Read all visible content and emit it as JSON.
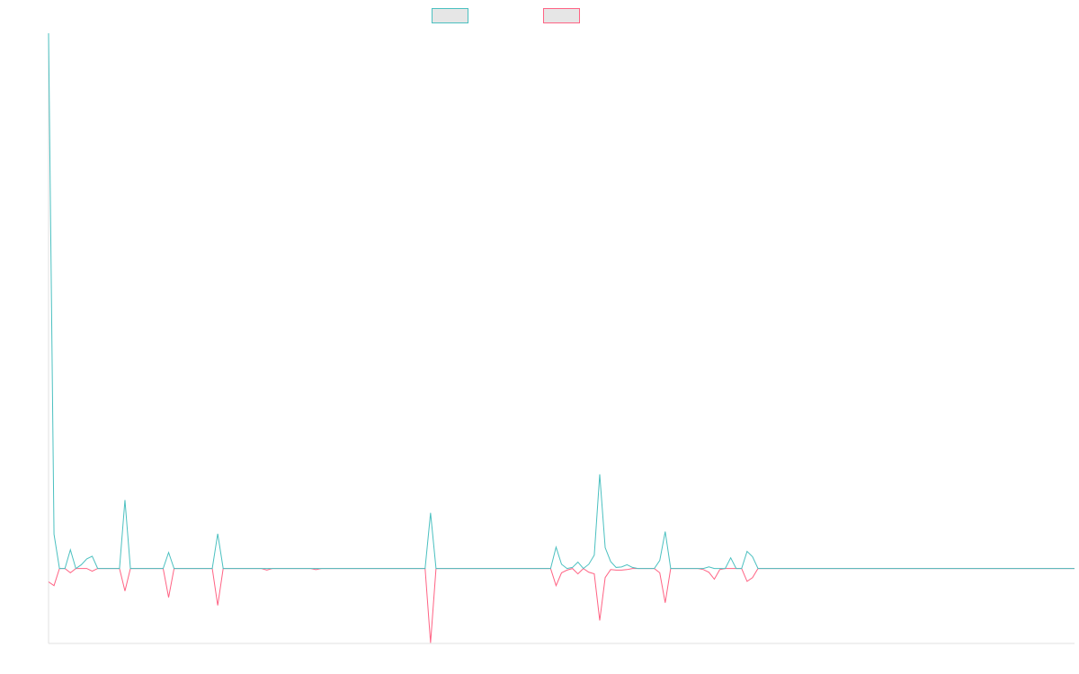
{
  "chart_data": {
    "type": "line",
    "categories": [
      null,
      null,
      null,
      null,
      null,
      null,
      null,
      null,
      null,
      null,
      null,
      null,
      null,
      null,
      null,
      null,
      null,
      null,
      null,
      null,
      null,
      null,
      null,
      null,
      null,
      null,
      null,
      null,
      null,
      null,
      null,
      null,
      null,
      null,
      null,
      null,
      null,
      null,
      null,
      null,
      null,
      null,
      null,
      null,
      null,
      null,
      null,
      null,
      null,
      null,
      null,
      null,
      null,
      null,
      null,
      null,
      null,
      null,
      null,
      null,
      null,
      null,
      null,
      null,
      null,
      null,
      null,
      null,
      null,
      null,
      null,
      null,
      null,
      null,
      null,
      null,
      null,
      null,
      null,
      null,
      null,
      null,
      null,
      null,
      null,
      null,
      null,
      null,
      null,
      null,
      null,
      null,
      null,
      null,
      null,
      null,
      null,
      null,
      null,
      null,
      null,
      null,
      null,
      null,
      null,
      null,
      null,
      null,
      null,
      null,
      null,
      null,
      null,
      null,
      null,
      null,
      null,
      null,
      null,
      null,
      null,
      null,
      null,
      null,
      null,
      null,
      null,
      null,
      null,
      null,
      null,
      null,
      null,
      null,
      null,
      null,
      null,
      null,
      null,
      null,
      null,
      null,
      null,
      null,
      null,
      null,
      null,
      null,
      null,
      null,
      null,
      null,
      null,
      null,
      null,
      null,
      null,
      null,
      null,
      null,
      null,
      null,
      null,
      null,
      null,
      null,
      null,
      null,
      null,
      null,
      null,
      null,
      null,
      null,
      null,
      null,
      null,
      null,
      null,
      null,
      null,
      null,
      null,
      null,
      null,
      null,
      null,
      null,
      null
    ],
    "series": [
      {
        "color": "#4bc0c0",
        "values": [
          100,
          6.4,
          0,
          0,
          3.5,
          0,
          0.7,
          1.8,
          2.3,
          0,
          0,
          0,
          0,
          0,
          12.8,
          0,
          0,
          0,
          0,
          0,
          0,
          0,
          3,
          0,
          0,
          0,
          0,
          0,
          0,
          0,
          0,
          6.5,
          0,
          0,
          0,
          0,
          0,
          0,
          0,
          0,
          0,
          0,
          0,
          0,
          0,
          0,
          0,
          0,
          0,
          0,
          0,
          0,
          0,
          0,
          0,
          0,
          0,
          0,
          0,
          0,
          0,
          0,
          0,
          0,
          0,
          0,
          0,
          0,
          0,
          0,
          10.4,
          0,
          0,
          0,
          0,
          0,
          0,
          0,
          0,
          0,
          0,
          0,
          0,
          0,
          0,
          0,
          0,
          0,
          0,
          0,
          0,
          0,
          0,
          4,
          0.8,
          0,
          0.2,
          1.2,
          0,
          0.8,
          2.5,
          17.6,
          3.9,
          1.3,
          0.2,
          0.3,
          0.7,
          0.2,
          0,
          0,
          0,
          0,
          1.5,
          6.9,
          0,
          0,
          0,
          0,
          0,
          0,
          0,
          0.3,
          0,
          0,
          0,
          2,
          0,
          0,
          3.2,
          2.2,
          0,
          0,
          0,
          0,
          0,
          0,
          0,
          0,
          0,
          0,
          0,
          0,
          0,
          0,
          0,
          0,
          0,
          0,
          0,
          0,
          0,
          0,
          0,
          0,
          0,
          0,
          0,
          0,
          0,
          0,
          0,
          0,
          0,
          0,
          0,
          0,
          0,
          0,
          0,
          0,
          0,
          0,
          0,
          0,
          0,
          0,
          0,
          0,
          0,
          0,
          0,
          0,
          0,
          0,
          0,
          0,
          0,
          0,
          0
        ]
      },
      {
        "color": "#ff6384",
        "values": [
          -2.5,
          -3.2,
          0,
          0,
          -0.8,
          0,
          0,
          0,
          -0.5,
          0,
          0,
          0,
          0,
          0,
          -4.2,
          0,
          0,
          0,
          0,
          0,
          0,
          0,
          -5.4,
          0,
          0,
          0,
          0,
          0,
          0,
          0,
          0,
          -6.9,
          0,
          0,
          0,
          0,
          0,
          0,
          0,
          0,
          -0.3,
          0,
          0,
          0,
          0,
          0,
          0,
          0,
          0,
          -0.2,
          0,
          0,
          0,
          0,
          0,
          0,
          0,
          0,
          0,
          0,
          0,
          0,
          0,
          0,
          0,
          0,
          0,
          0,
          0,
          0,
          -13.9,
          0,
          0,
          0,
          0,
          0,
          0,
          0,
          0,
          0,
          0,
          0,
          0,
          0,
          0,
          0,
          0,
          0,
          0,
          0,
          0,
          0,
          0,
          -3.2,
          -0.8,
          -0.3,
          0,
          -1,
          0,
          -0.7,
          -1,
          -9.7,
          -1.7,
          -0.2,
          -0.3,
          -0.3,
          -0.2,
          0,
          0,
          0,
          0,
          0,
          -0.8,
          -6.4,
          0,
          0,
          0,
          0,
          0,
          0,
          -0.2,
          -0.7,
          -2,
          -0.2,
          0,
          0,
          0,
          0,
          -2.4,
          -1.7,
          0,
          0,
          0,
          0,
          0,
          0,
          0,
          0,
          0,
          0,
          0,
          0,
          0,
          0,
          0,
          0,
          0,
          0,
          0,
          0,
          0,
          0,
          0,
          0,
          0,
          0,
          0,
          0,
          0,
          0,
          0,
          0,
          0,
          0,
          0,
          0,
          0,
          0,
          0,
          0,
          0,
          0,
          0,
          0,
          0,
          0,
          0,
          0,
          0,
          0,
          0,
          0,
          0,
          0,
          0,
          0,
          0,
          0,
          0
        ]
      }
    ],
    "ylim": [
      -14,
      100
    ]
  }
}
